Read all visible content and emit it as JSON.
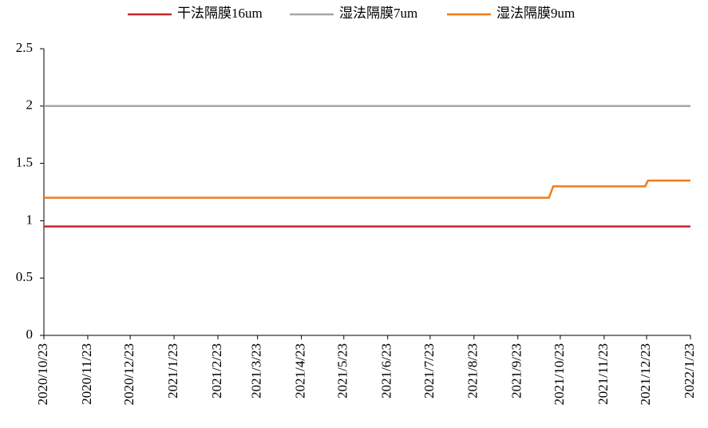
{
  "chart_data": {
    "type": "line",
    "x": [
      "2020/10/23",
      "2021/10/15",
      "2021/10/18",
      "2021/12/22",
      "2021/12/24",
      "2022/1/23"
    ],
    "series": [
      {
        "name": "干法隔膜16um",
        "color": "#c0282d",
        "values": [
          0.95,
          0.95,
          0.95,
          0.95,
          0.95,
          0.95
        ]
      },
      {
        "name": "湿法隔膜7um",
        "color": "#a6a6a6",
        "values": [
          2,
          2,
          2,
          2,
          2,
          2
        ]
      },
      {
        "name": "湿法隔膜9um",
        "color": "#f07c1a",
        "values": [
          1.2,
          1.2,
          1.3,
          1.3,
          1.35,
          1.35
        ]
      }
    ],
    "xlim": [
      "2020/10/23",
      "2022/1/23"
    ],
    "xticks": [
      "2020/10/23",
      "2020/11/23",
      "2020/12/23",
      "2021/1/23",
      "2021/2/23",
      "2021/3/23",
      "2021/4/23",
      "2021/5/23",
      "2021/6/23",
      "2021/7/23",
      "2021/8/23",
      "2021/9/23",
      "2021/10/23",
      "2021/11/23",
      "2021/12/23",
      "2022/1/23"
    ],
    "ylim": [
      0,
      2.5
    ],
    "yticks": [
      0,
      0.5,
      1,
      1.5,
      2,
      2.5
    ],
    "legend": "top"
  }
}
